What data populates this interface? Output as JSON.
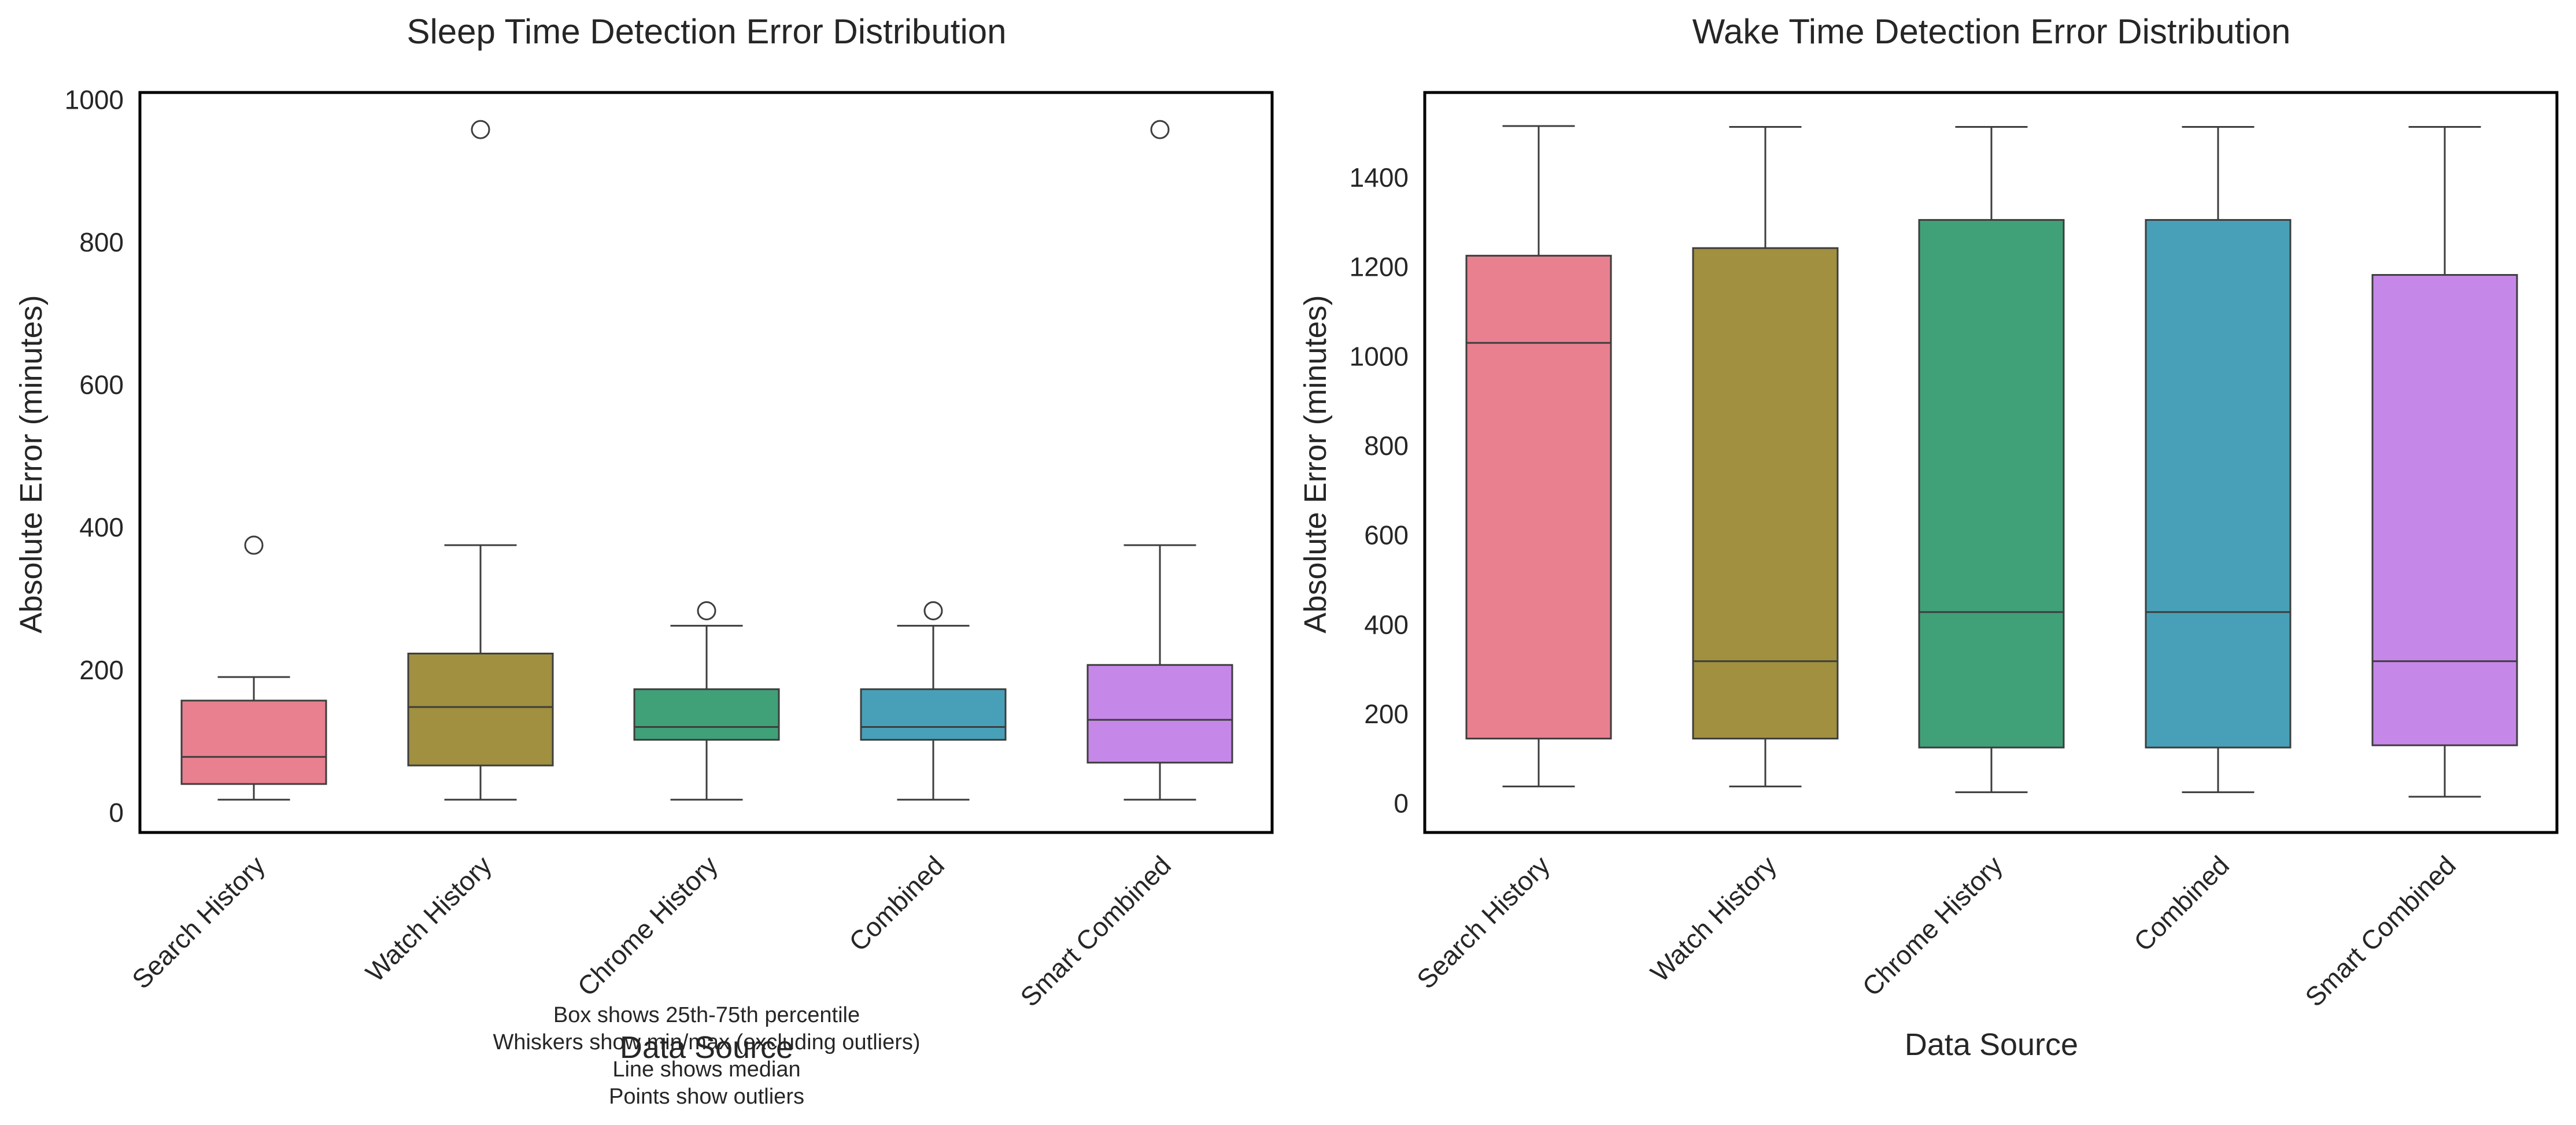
{
  "charts": [
    {
      "title": "Sleep Time Detection Error Distribution",
      "xlabel": "Data Source",
      "ylabel": "Absolute Error (minutes)",
      "yticks": [
        0,
        200,
        400,
        600,
        800,
        1000
      ]
    },
    {
      "title": "Wake Time Detection Error Distribution",
      "xlabel": "Data Source",
      "ylabel": "Absolute Error (minutes)",
      "yticks": [
        0,
        200,
        400,
        600,
        800,
        1000,
        1200,
        1400
      ]
    }
  ],
  "annotation": [
    "Box shows 25th-75th percentile",
    "Whiskers show min/max (excluding outliers)",
    "Line shows median",
    "Points show outliers"
  ],
  "palette": [
    "#e8808f",
    "#a0903f",
    "#40a078",
    "#48a0b8",
    "#c688e8"
  ],
  "chart_data": [
    {
      "type": "box",
      "title": "Sleep Time Detection Error Distribution",
      "xlabel": "Data Source",
      "ylabel": "Absolute Error (minutes)",
      "ylim": [
        -28,
        1010
      ],
      "grid": false,
      "categories": [
        "Search History",
        "Watch History",
        "Chrome History",
        "Combined",
        "Smart Combined"
      ],
      "boxes": [
        {
          "whisker_low": 18,
          "q1": 40,
          "median": 78,
          "q3": 157,
          "whisker_high": 190,
          "outliers": [
            375
          ]
        },
        {
          "whisker_low": 18,
          "q1": 66,
          "median": 148,
          "q3": 223,
          "whisker_high": 375,
          "outliers": [
            958
          ]
        },
        {
          "whisker_low": 18,
          "q1": 102,
          "median": 120,
          "q3": 173,
          "whisker_high": 262,
          "outliers": [
            283
          ]
        },
        {
          "whisker_low": 18,
          "q1": 102,
          "median": 120,
          "q3": 173,
          "whisker_high": 262,
          "outliers": [
            283
          ]
        },
        {
          "whisker_low": 18,
          "q1": 70,
          "median": 130,
          "q3": 207,
          "whisker_high": 375,
          "outliers": [
            958
          ]
        }
      ]
    },
    {
      "type": "box",
      "title": "Wake Time Detection Error Distribution",
      "xlabel": "Data Source",
      "ylabel": "Absolute Error (minutes)",
      "ylim": [
        -65,
        1590
      ],
      "grid": false,
      "categories": [
        "Search History",
        "Watch History",
        "Chrome History",
        "Combined",
        "Smart Combined"
      ],
      "boxes": [
        {
          "whisker_low": 38,
          "q1": 145,
          "median": 1030,
          "q3": 1225,
          "whisker_high": 1515,
          "outliers": []
        },
        {
          "whisker_low": 38,
          "q1": 145,
          "median": 318,
          "q3": 1242,
          "whisker_high": 1513,
          "outliers": []
        },
        {
          "whisker_low": 25,
          "q1": 125,
          "median": 428,
          "q3": 1305,
          "whisker_high": 1513,
          "outliers": []
        },
        {
          "whisker_low": 25,
          "q1": 125,
          "median": 428,
          "q3": 1305,
          "whisker_high": 1513,
          "outliers": []
        },
        {
          "whisker_low": 15,
          "q1": 130,
          "median": 318,
          "q3": 1182,
          "whisker_high": 1513,
          "outliers": []
        }
      ]
    }
  ]
}
